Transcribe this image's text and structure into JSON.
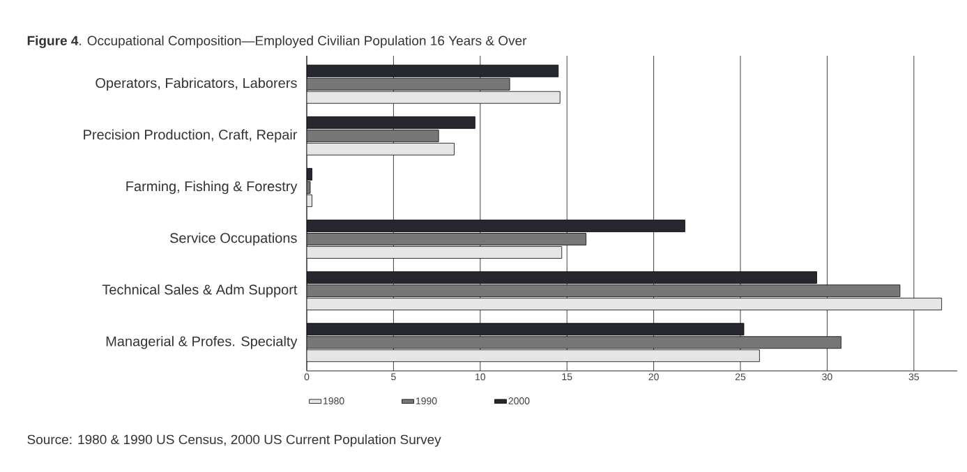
{
  "chart_data": {
    "type": "bar",
    "orientation": "horizontal",
    "title": "**Figure 4**. Occupational Composition—Employed Civilian Population 16 Years & Over",
    "categories": [
      "Operators, Fabricators, Laborers",
      "Precision Production, Craft, Repair",
      "Farming, Fishing & Forestry",
      "Service Occupations",
      "Technical Sales & Adm Support",
      "Managerial & Profes. Specialty"
    ],
    "series": [
      {
        "name": "1980",
        "color": "#e6e6e6",
        "values": [
          14.6,
          8.5,
          0.3,
          14.7,
          36.6,
          26.1
        ]
      },
      {
        "name": "1990",
        "color": "#777777",
        "values": [
          11.7,
          7.6,
          0.2,
          16.1,
          34.2,
          30.8
        ]
      },
      {
        "name": "2000",
        "color": "#272730",
        "values": [
          14.5,
          9.7,
          0.3,
          21.8,
          29.4,
          25.2
        ]
      }
    ],
    "xlim": [
      0,
      37.5
    ],
    "xticks": [
      0,
      5,
      10,
      15,
      20,
      25,
      30,
      35
    ],
    "grid": "x",
    "legend": "bottom",
    "annotations": [
      "Source: 1980 & 1990 US Census, 2000 US Current Population Survey"
    ]
  }
}
